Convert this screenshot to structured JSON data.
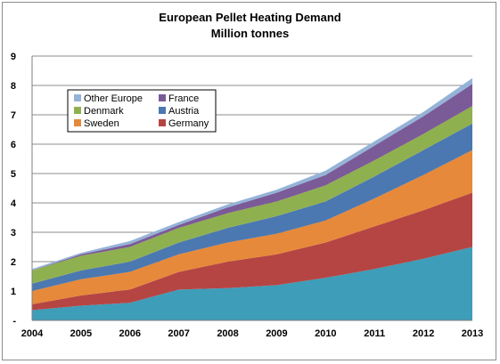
{
  "chart_data": {
    "type": "area",
    "stacked": true,
    "title": "European Pellet Heating Demand",
    "subtitle": "Million tonnes",
    "xlabel": "",
    "ylabel": "",
    "x": [
      "2004",
      "2005",
      "2006",
      "2007",
      "2008",
      "2009",
      "2010",
      "2011",
      "2012",
      "2013"
    ],
    "ylim": [
      0,
      9
    ],
    "yticks": [
      "-",
      "1",
      "2",
      "3",
      "4",
      "5",
      "6",
      "7",
      "8",
      "9"
    ],
    "grid": true,
    "legend_position": "upper-left",
    "series": [
      {
        "name": "Other Europe",
        "color": "#95b3d7"
      },
      {
        "name": "France",
        "color": "#7b5a98"
      },
      {
        "name": "Denmark",
        "color": "#8fb04f"
      },
      {
        "name": "Austria",
        "color": "#4b78b0"
      },
      {
        "name": "Sweden",
        "color": "#e6893a"
      },
      {
        "name": "Germany",
        "color": "#b54543"
      }
    ],
    "bottom_layer_color": "#3e9db8",
    "stacked_layers_bottom_to_top": [
      {
        "values": [
          0.35,
          0.5,
          0.6,
          1.05,
          1.1,
          1.2,
          1.45,
          1.75,
          2.1,
          2.5
        ]
      },
      {
        "name": "Germany",
        "values": [
          0.2,
          0.35,
          0.45,
          0.6,
          0.9,
          1.05,
          1.2,
          1.45,
          1.65,
          1.85
        ]
      },
      {
        "name": "Sweden",
        "values": [
          0.45,
          0.55,
          0.6,
          0.6,
          0.65,
          0.7,
          0.75,
          0.95,
          1.2,
          1.45
        ]
      },
      {
        "name": "Austria",
        "values": [
          0.25,
          0.3,
          0.35,
          0.4,
          0.5,
          0.6,
          0.65,
          0.75,
          0.85,
          0.9
        ]
      },
      {
        "name": "Denmark",
        "values": [
          0.45,
          0.5,
          0.5,
          0.5,
          0.5,
          0.5,
          0.55,
          0.55,
          0.55,
          0.6
        ]
      },
      {
        "name": "France",
        "values": [
          0.0,
          0.05,
          0.1,
          0.1,
          0.2,
          0.3,
          0.35,
          0.5,
          0.6,
          0.75
        ]
      },
      {
        "name": "Other Europe",
        "values": [
          0.05,
          0.05,
          0.1,
          0.1,
          0.1,
          0.1,
          0.15,
          0.15,
          0.15,
          0.2
        ]
      }
    ]
  }
}
